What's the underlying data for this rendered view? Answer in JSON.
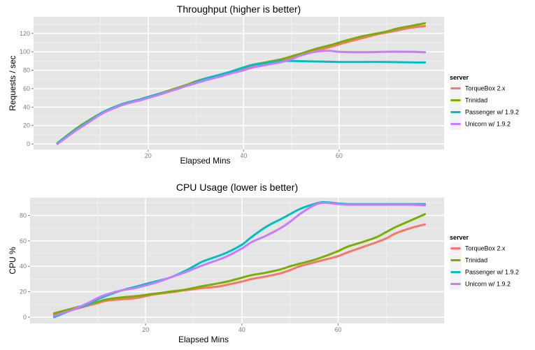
{
  "chart_data": [
    {
      "type": "line",
      "title": "Throughput (higher is better)",
      "xlabel": "Elapsed Mins",
      "ylabel": "Requests / sec",
      "xlim": [
        -4,
        82
      ],
      "ylim": [
        -6,
        138
      ],
      "xticks": [
        20,
        40,
        60
      ],
      "yticks": [
        0,
        20,
        40,
        60,
        80,
        100,
        120
      ],
      "grid": true,
      "legend": {
        "title": "server",
        "position": "right"
      },
      "series": [
        {
          "name": "TorqueBox 2.x",
          "color": "#F8766D",
          "x": [
            1,
            5,
            8,
            10,
            12,
            15,
            18,
            20,
            22,
            25,
            28,
            30,
            32,
            35,
            37,
            40,
            42,
            45,
            48,
            50,
            52,
            55,
            58,
            60,
            62,
            65,
            68,
            70,
            72,
            75,
            78
          ],
          "y": [
            1,
            16,
            26,
            32,
            37,
            43,
            47,
            50,
            53,
            58,
            63,
            67,
            70,
            74,
            77,
            82,
            85,
            88,
            91,
            94,
            97,
            101,
            105,
            108,
            111,
            115,
            119,
            121,
            123,
            126,
            128
          ]
        },
        {
          "name": "Trinidad",
          "color": "#7CAE00",
          "x": [
            1,
            5,
            8,
            10,
            12,
            15,
            18,
            20,
            22,
            25,
            28,
            30,
            32,
            35,
            37,
            40,
            42,
            45,
            48,
            50,
            52,
            55,
            58,
            60,
            62,
            65,
            68,
            70,
            72,
            75,
            78
          ],
          "y": [
            1,
            17,
            27,
            33,
            38,
            44,
            48,
            51,
            54,
            59,
            64,
            68,
            71,
            75,
            78,
            83,
            86,
            89,
            92,
            95,
            98,
            103,
            107,
            110,
            113,
            117,
            120,
            122,
            125,
            128,
            131
          ]
        },
        {
          "name": "Passenger w/ 1.9.2",
          "color": "#00BFC4",
          "x": [
            1,
            5,
            8,
            10,
            12,
            15,
            18,
            20,
            22,
            25,
            28,
            30,
            32,
            35,
            37,
            40,
            42,
            45,
            48,
            50,
            55,
            60,
            65,
            70,
            75,
            78
          ],
          "y": [
            1,
            16,
            26,
            33,
            38,
            44,
            48,
            51,
            54,
            58,
            63,
            67,
            71,
            75,
            78,
            83,
            86,
            88,
            90,
            90,
            89.5,
            89,
            89,
            89,
            88.5,
            88.5
          ]
        },
        {
          "name": "Unicorn w/ 1.9.2",
          "color": "#C77CFF",
          "x": [
            1,
            5,
            8,
            10,
            12,
            15,
            18,
            20,
            22,
            25,
            28,
            30,
            32,
            35,
            37,
            40,
            42,
            45,
            48,
            50,
            52,
            55,
            58,
            60,
            65,
            70,
            75,
            78
          ],
          "y": [
            0,
            15,
            25,
            32,
            37,
            43,
            47,
            50,
            53,
            58,
            63,
            66,
            69,
            73,
            76,
            80,
            83,
            86,
            89,
            92,
            96,
            100,
            101,
            100,
            99.5,
            100,
            100,
            99.5
          ]
        }
      ]
    },
    {
      "type": "line",
      "title": "CPU Usage (lower is better)",
      "xlabel": "Elapsed Mins",
      "ylabel": "CPU %",
      "xlim": [
        -4,
        82
      ],
      "ylim": [
        -5,
        94
      ],
      "xticks": [
        20,
        40,
        60
      ],
      "yticks": [
        0,
        20,
        40,
        60,
        80
      ],
      "grid": true,
      "legend": {
        "title": "server",
        "position": "right"
      },
      "series": [
        {
          "name": "TorqueBox 2.x",
          "color": "#F8766D",
          "x": [
            1,
            5,
            8,
            10,
            12,
            15,
            18,
            20,
            22,
            25,
            28,
            30,
            32,
            35,
            37,
            40,
            42,
            45,
            48,
            50,
            52,
            55,
            58,
            60,
            62,
            65,
            68,
            70,
            72,
            75,
            78
          ],
          "y": [
            2,
            6,
            9,
            11,
            13,
            14,
            15,
            16.5,
            18,
            19.5,
            21,
            22,
            23,
            24,
            25.5,
            28,
            30,
            32,
            34.5,
            37,
            40,
            43,
            46,
            48,
            51,
            55,
            59,
            62,
            66,
            70,
            73
          ]
        },
        {
          "name": "Trinidad",
          "color": "#7CAE00",
          "x": [
            1,
            5,
            8,
            10,
            12,
            15,
            18,
            20,
            22,
            25,
            28,
            30,
            32,
            35,
            37,
            40,
            42,
            45,
            48,
            50,
            52,
            55,
            58,
            60,
            62,
            65,
            68,
            70,
            72,
            75,
            78
          ],
          "y": [
            3,
            7,
            10,
            12,
            14,
            15.5,
            16.5,
            17.5,
            18.5,
            20,
            21.5,
            23,
            24.5,
            26.5,
            28,
            31,
            33,
            35,
            37.5,
            40,
            42,
            45,
            49,
            52,
            55.5,
            59,
            63,
            67,
            71,
            76,
            81
          ]
        },
        {
          "name": "Passenger w/ 1.9.2",
          "color": "#00BFC4",
          "x": [
            1,
            5,
            8,
            10,
            12,
            15,
            18,
            20,
            22,
            25,
            28,
            30,
            32,
            35,
            37,
            40,
            42,
            45,
            48,
            50,
            52,
            55,
            57,
            60,
            62,
            65,
            70,
            75,
            78
          ],
          "y": [
            0,
            6,
            10,
            14,
            17,
            21,
            24,
            26,
            28,
            31,
            36,
            40,
            44,
            48,
            51,
            57,
            63,
            71,
            77,
            81,
            85,
            89,
            90.5,
            89.5,
            89,
            89,
            89,
            89,
            89
          ]
        },
        {
          "name": "Unicorn w/ 1.9.2",
          "color": "#C77CFF",
          "x": [
            1,
            5,
            8,
            10,
            12,
            15,
            18,
            20,
            22,
            25,
            28,
            30,
            32,
            35,
            37,
            40,
            42,
            45,
            48,
            50,
            52,
            55,
            57,
            60,
            62,
            65,
            70,
            75,
            78
          ],
          "y": [
            1,
            6,
            11,
            15,
            18,
            21,
            23,
            25,
            27,
            31,
            35,
            38,
            41,
            45,
            48,
            54,
            59,
            64,
            70,
            75,
            81,
            88,
            90,
            89,
            88.5,
            88.5,
            88.5,
            88.5,
            88
          ]
        }
      ]
    }
  ]
}
